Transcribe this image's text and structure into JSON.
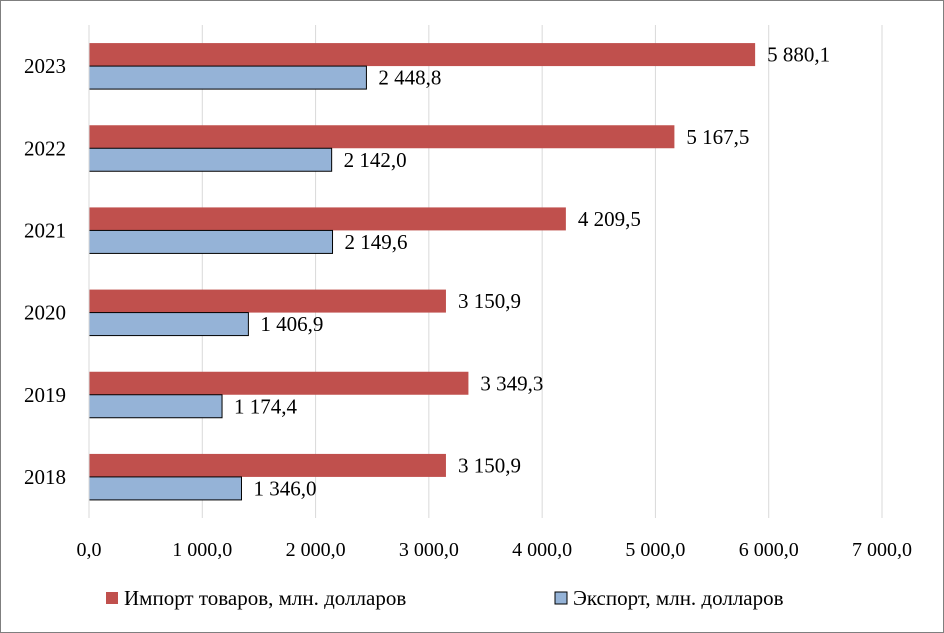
{
  "chart_data": {
    "type": "bar",
    "orientation": "horizontal",
    "categories": [
      "2018",
      "2019",
      "2020",
      "2021",
      "2022",
      "2023"
    ],
    "series": [
      {
        "name": "Импорт товаров, млн. долларов",
        "color": "#c0504d",
        "values": [
          3150.9,
          3349.3,
          3150.9,
          4209.5,
          5167.5,
          5880.1
        ],
        "labels": [
          "3 150,9",
          "3 349,3",
          "3 150,9",
          "4 209,5",
          "5 167,5",
          "5 880,1"
        ]
      },
      {
        "name": "Экспорт, млн. долларов",
        "color": "#95b3d7",
        "values": [
          1346.0,
          1174.4,
          1406.9,
          2149.6,
          2142.0,
          2448.8
        ],
        "labels": [
          "1 346,0",
          "1 174,4",
          "1 406,9",
          "2 149,6",
          "2 142,0",
          "2 448,8"
        ]
      }
    ],
    "xlim": [
      0,
      7000
    ],
    "xticks": [
      0,
      1000,
      2000,
      3000,
      4000,
      5000,
      6000,
      7000
    ],
    "xtick_labels": [
      "0,0",
      "1 000,0",
      "2 000,0",
      "3 000,0",
      "4 000,0",
      "5 000,0",
      "6 000,0",
      "7 000,0"
    ],
    "grid": true,
    "legend_position": "bottom",
    "title": "",
    "xlabel": "",
    "ylabel": ""
  }
}
